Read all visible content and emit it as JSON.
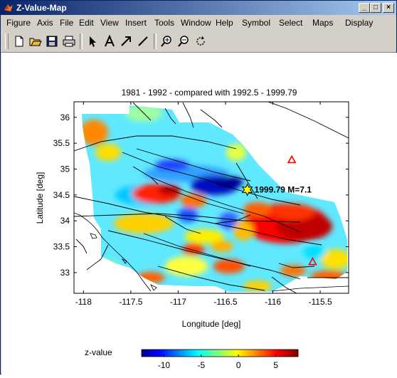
{
  "window": {
    "title": "Z-Value-Map",
    "min_glyph": "_",
    "max_glyph": "□",
    "close_glyph": "×"
  },
  "menu": [
    {
      "label": "Figure"
    },
    {
      "label": "Axis"
    },
    {
      "label": "File"
    },
    {
      "label": "Edit"
    },
    {
      "label": "View"
    },
    {
      "label": "Insert"
    },
    {
      "label": "Tools"
    },
    {
      "label": "Window"
    },
    {
      "label": "Help"
    },
    {
      "label": "Symbol"
    },
    {
      "label": "Select"
    },
    {
      "label": "Maps"
    },
    {
      "label": "Display"
    }
  ],
  "toolbar": {
    "icons": [
      "new-file-icon",
      "open-folder-icon",
      "save-icon",
      "print-icon",
      "pointer-icon",
      "text-icon",
      "arrow-icon",
      "line-icon",
      "zoom-in-icon",
      "zoom-out-icon",
      "rotate-icon"
    ]
  },
  "chart_data": {
    "type": "heatmap",
    "title": "1981 - 1992 - compared with 1992.5 - 1999.79",
    "xlabel": "Longitude [deg]",
    "ylabel": "Latitude [deg]",
    "xlim": [
      -118.1,
      -115.2
    ],
    "ylim": [
      32.6,
      36.3
    ],
    "xticks": [
      -118,
      -117.5,
      -117,
      -116.5,
      -116,
      -115.5
    ],
    "xtick_labels": [
      "-118",
      "-117.5",
      "-117",
      "-116.5",
      "-116",
      "-115.5"
    ],
    "yticks": [
      33,
      33.5,
      34,
      34.5,
      35,
      35.5,
      36
    ],
    "ytick_labels": [
      "33",
      "33.5",
      "34",
      "34.5",
      "35",
      "35.5",
      "36"
    ],
    "event": {
      "label": "1999.79 M=7.1",
      "lon": -116.27,
      "lat": 34.6
    },
    "triangles": [
      {
        "lon": -115.8,
        "lat": 35.18
      },
      {
        "lon": -115.58,
        "lat": 33.21
      }
    ],
    "colorbar": {
      "label": "z-value",
      "range": [
        -13,
        8
      ],
      "ticks": [
        -10,
        -5,
        0,
        5
      ],
      "tick_labels": [
        "-10",
        "-5",
        "0",
        "5"
      ]
    },
    "colors": {
      "axis": "#000000",
      "fault": "#000000",
      "triangle": "#ff0000",
      "star": "#ffff00"
    }
  }
}
